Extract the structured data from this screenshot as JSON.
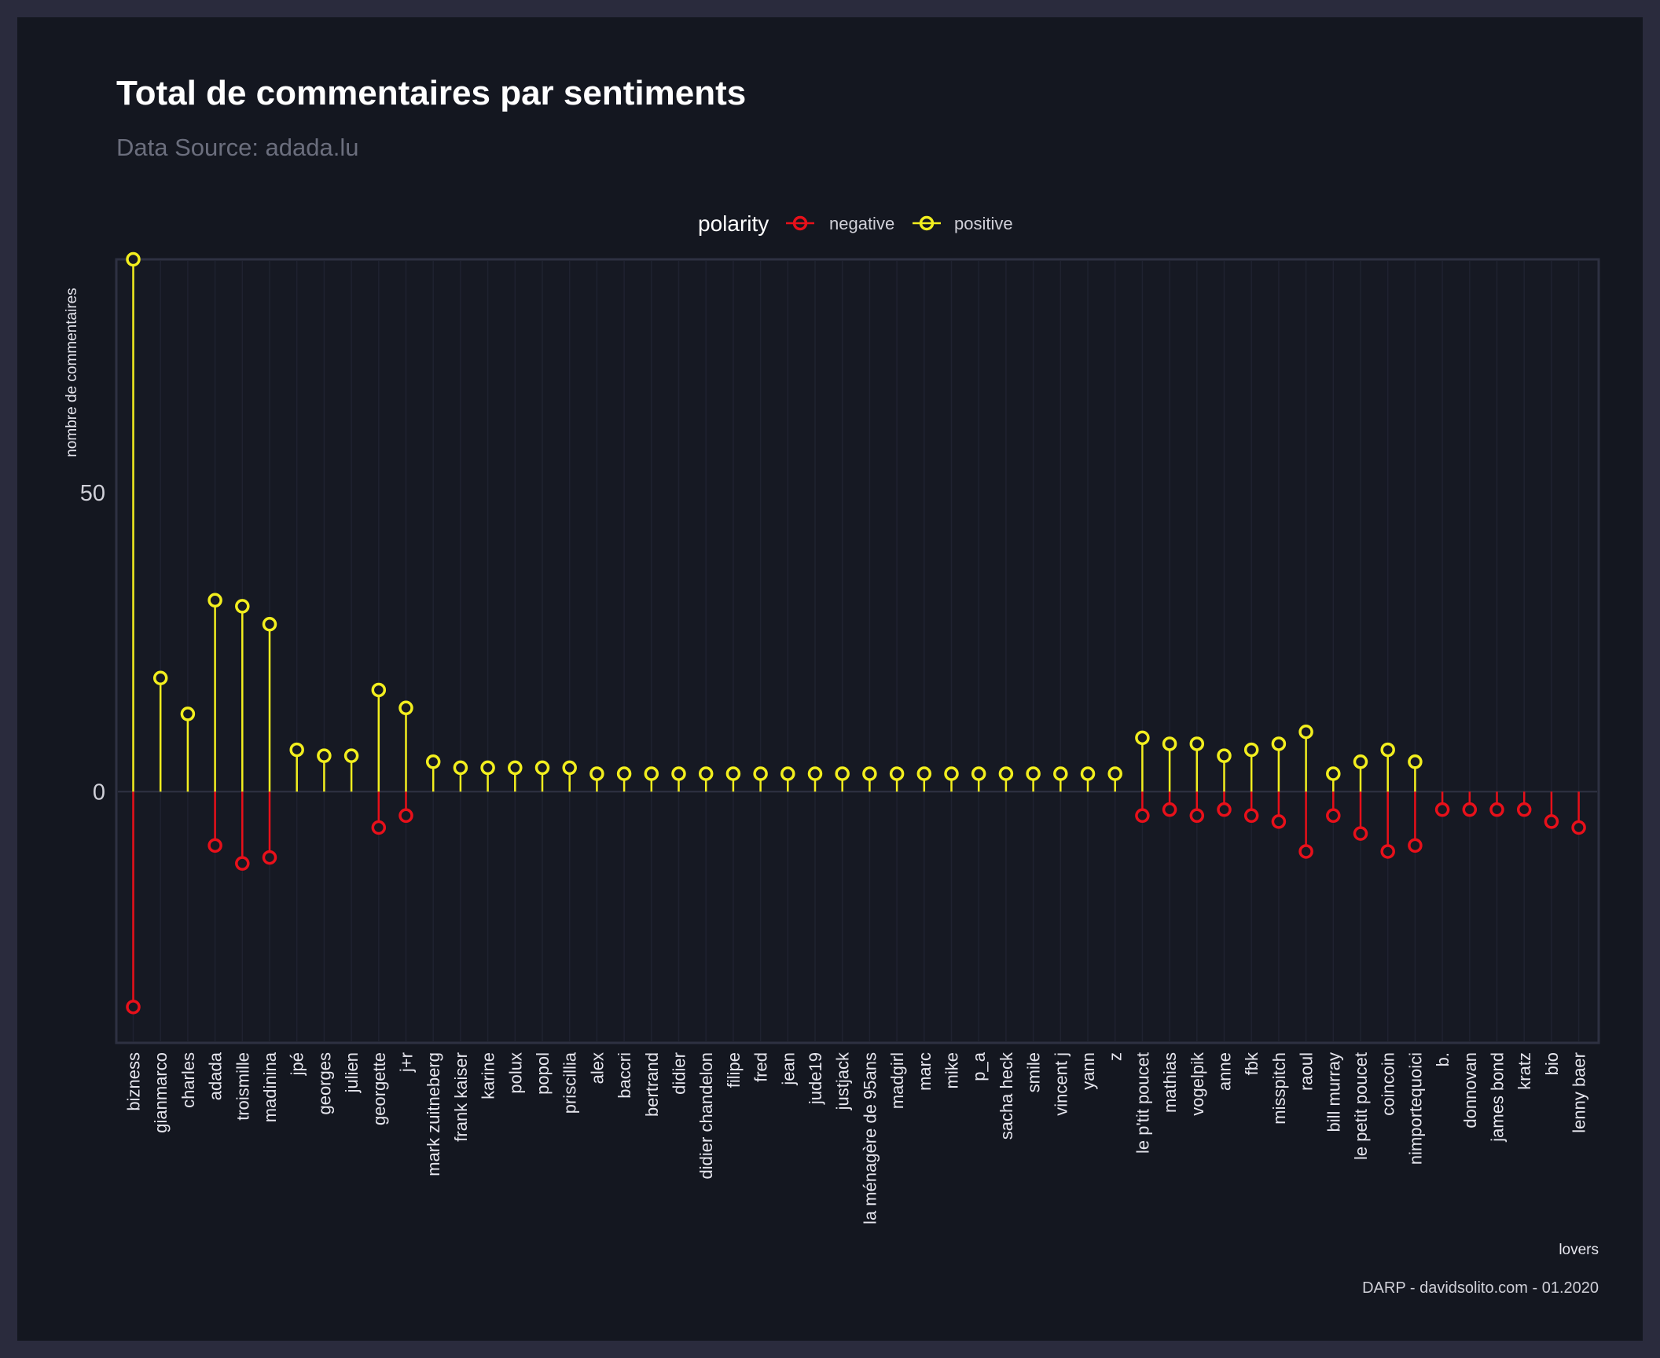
{
  "chart_data": {
    "type": "lollipop",
    "title": "Total de commentaires par sentiments",
    "subtitle": "Data Source: adada.lu",
    "xlabel": "lovers",
    "ylabel": "nombre de commentaires",
    "caption": "DARP - davidsolito.com - 01.2020",
    "legend": {
      "title": "polarity",
      "position": "top",
      "entries": [
        {
          "name": "negative",
          "color": "#e8101a"
        },
        {
          "name": "positive",
          "color": "#f2ee1e"
        }
      ]
    },
    "ylim": [
      -42,
      89
    ],
    "yticks": [
      0,
      50
    ],
    "grid": true,
    "categories": [
      "bizness",
      "gianmarco",
      "charles",
      "adada",
      "troismille",
      "madinina",
      "jpé",
      "georges",
      "julien",
      "georgette",
      "j+r",
      "mark zuitneberg",
      "frank kaiser",
      "karine",
      "polux",
      "popol",
      "priscillia",
      "alex",
      "baccri",
      "bertrand",
      "didier",
      "didier chandelon",
      "filipe",
      "fred",
      "jean",
      "jude19",
      "justjack",
      "la ménagère de 95ans",
      "madgirl",
      "marc",
      "mike",
      "p_a",
      "sacha heck",
      "smile",
      "vincent j",
      "yann",
      "z",
      "le p'tit poucet",
      "mathias",
      "vogelpik",
      "anne",
      "fbk",
      "misspitch",
      "raoul",
      "bill murray",
      "le petit poucet",
      "coincoin",
      "nimportequoici",
      "b.",
      "donnovan",
      "james bond",
      "kratz",
      "bio",
      "lenny baer"
    ],
    "series": [
      {
        "name": "positive",
        "color": "#f2ee1e",
        "values": [
          89,
          19,
          13,
          32,
          31,
          28,
          7,
          6,
          6,
          17,
          14,
          5,
          4,
          4,
          4,
          4,
          4,
          3,
          3,
          3,
          3,
          3,
          3,
          3,
          3,
          3,
          3,
          3,
          3,
          3,
          3,
          3,
          3,
          3,
          3,
          3,
          3,
          9,
          8,
          8,
          6,
          7,
          8,
          10,
          3,
          5,
          7,
          5,
          null,
          null,
          null,
          null,
          null,
          null
        ]
      },
      {
        "name": "negative",
        "color": "#e8101a",
        "values": [
          -36,
          null,
          null,
          -9,
          -12,
          -11,
          null,
          null,
          null,
          -6,
          -4,
          null,
          null,
          null,
          null,
          null,
          null,
          null,
          null,
          null,
          null,
          null,
          null,
          null,
          null,
          null,
          null,
          null,
          null,
          null,
          null,
          null,
          null,
          null,
          null,
          null,
          null,
          -4,
          -3,
          -4,
          -3,
          -4,
          -5,
          -10,
          -4,
          -7,
          -10,
          -9,
          -3,
          -3,
          -3,
          -3,
          -5,
          -6
        ]
      }
    ]
  }
}
